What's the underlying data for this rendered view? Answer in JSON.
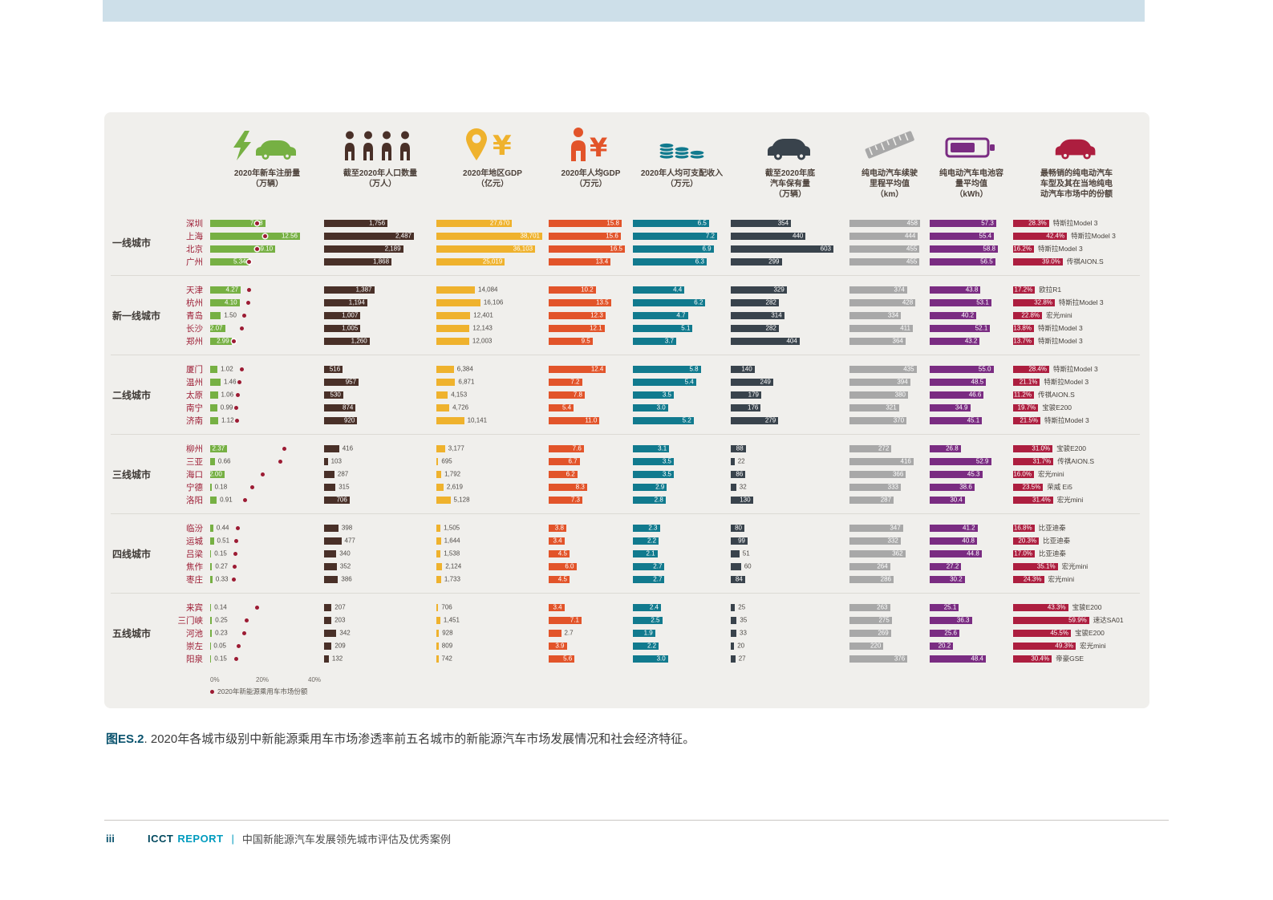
{
  "caption": {
    "label": "图ES.2",
    "text": ". 2020年各城市级别中新能源乘用车市场渗透率前五名城市的新能源汽车市场发展情况和社会经济特征。"
  },
  "footer": {
    "page": "iii",
    "org": "ICCT",
    "report": "REPORT",
    "divider": "|",
    "title": "中国新能源汽车发展领先城市评估及优秀案例"
  },
  "chart_data": {
    "type": "bar",
    "title": "2020年各城市级别中新能源乘用车市场渗透率前五名城市的新能源汽车市场发展情况和社会经济特征",
    "dot_color": "#9c1b33",
    "panel_color": "#f0efec",
    "share_axis": {
      "min": 0,
      "max": 40,
      "ticks": [
        "0%",
        "20%",
        "40%"
      ]
    },
    "legend_dot_label": "2020年新能源乘用车市场份额",
    "columns": [
      {
        "id": "reg",
        "icon": "charging-car-icon",
        "title": "2020年新车注册量\n（万辆）",
        "color": "#76b043",
        "max": 12.56,
        "format": "str"
      },
      {
        "id": "pop",
        "icon": "people-icon",
        "title": "截至2020年人口数量\n（万人）",
        "color": "#493028",
        "max": 2487,
        "format": "comma"
      },
      {
        "id": "gdp",
        "icon": "location-yuan-icon",
        "title": "2020年地区GDP\n（亿元）",
        "color": "#efb22d",
        "max": 38701,
        "format": "comma"
      },
      {
        "id": "gdp_pc",
        "icon": "person-yuan-icon",
        "title": "2020年人均GDP\n（万元）",
        "color": "#e2542a",
        "max": 16.5,
        "format": "fix1"
      },
      {
        "id": "income",
        "icon": "coins-icon",
        "title": "2020年人均可支配收入\n（万元）",
        "color": "#117a8e",
        "max": 7.2,
        "format": "fix1"
      },
      {
        "id": "cars",
        "icon": "car-icon",
        "title": "截至2020年底\n汽车保有量\n（万辆）",
        "color": "#39434c",
        "max": 603,
        "format": "int"
      },
      {
        "id": "range",
        "icon": "ruler-icon",
        "title": "纯电动汽车续驶\n里程平均值\n（km）",
        "color": "#a8a8a8",
        "max": 458,
        "format": "int"
      },
      {
        "id": "battery",
        "icon": "battery-icon",
        "title": "纯电动汽车电池容\n量平均值\n（kWh）",
        "color": "#7a2c82",
        "max": 58.8,
        "format": "fix1"
      },
      {
        "id": "top",
        "icon": "ev-car-icon",
        "title": "最畅销的纯电动汽车\n车型及其在当地纯电\n动汽车市场中的份额",
        "color": "#ad1e3f",
        "max": 60,
        "format": "pct1"
      }
    ],
    "tiers": [
      {
        "label": "一线城市",
        "cities": [
          {
            "name": "深圳",
            "reg": "7.68",
            "share": 18.0,
            "pop": 1756,
            "gdp": 27670,
            "gdp_pc": 15.8,
            "income": 6.5,
            "cars": 354,
            "range": 458,
            "battery": 57.3,
            "top_share": 28.3,
            "top_model": "特斯拉Model 3"
          },
          {
            "name": "上海",
            "reg": "12.56",
            "share": 21.0,
            "pop": 2487,
            "gdp": 38701,
            "gdp_pc": 15.6,
            "income": 7.2,
            "cars": 440,
            "range": 444,
            "battery": 55.4,
            "top_share": 42.4,
            "top_model": "特斯拉Model 3"
          },
          {
            "name": "北京",
            "reg": "9.10",
            "share": 18.0,
            "pop": 2189,
            "gdp": 36103,
            "gdp_pc": 16.5,
            "income": 6.9,
            "cars": 603,
            "range": 455,
            "battery": 58.8,
            "top_share": 16.2,
            "top_model": "特斯拉Model 3"
          },
          {
            "name": "广州",
            "reg": "5.34",
            "share": 15.0,
            "pop": 1868,
            "gdp": 25019,
            "gdp_pc": 13.4,
            "income": 6.3,
            "cars": 299,
            "range": 455,
            "battery": 56.5,
            "top_share": 39.0,
            "top_model": "传祺AION.S"
          }
        ]
      },
      {
        "label": "新一线城市",
        "cities": [
          {
            "name": "天津",
            "reg": "4.27",
            "share": 15.0,
            "pop": 1387,
            "gdp": 14084,
            "gdp_pc": 10.2,
            "income": 4.4,
            "cars": 329,
            "range": 374,
            "battery": 43.8,
            "top_share": 17.2,
            "top_model": "欧拉R1"
          },
          {
            "name": "杭州",
            "reg": "4.10",
            "share": 14.5,
            "pop": 1194,
            "gdp": 16106,
            "gdp_pc": 13.5,
            "income": 6.2,
            "cars": 282,
            "range": 428,
            "battery": 53.1,
            "top_share": 32.8,
            "top_model": "特斯拉Model 3"
          },
          {
            "name": "青岛",
            "reg": "1.50",
            "share": 13.0,
            "pop": 1007,
            "gdp": 12401,
            "gdp_pc": 12.3,
            "income": 4.7,
            "cars": 314,
            "range": 334,
            "battery": 40.2,
            "top_share": 22.8,
            "top_model": "宏光mini"
          },
          {
            "name": "长沙",
            "reg": "2.07",
            "share": 12.0,
            "pop": 1005,
            "gdp": 12143,
            "gdp_pc": 12.1,
            "income": 5.1,
            "cars": 282,
            "range": 411,
            "battery": 52.1,
            "top_share": 13.8,
            "top_model": "特斯拉Model 3"
          },
          {
            "name": "郑州",
            "reg": "2.99",
            "share": 9.0,
            "pop": 1260,
            "gdp": 12003,
            "gdp_pc": 9.5,
            "income": 3.7,
            "cars": 404,
            "range": 364,
            "battery": 43.2,
            "top_share": 13.7,
            "top_model": "特斯拉Model 3"
          }
        ]
      },
      {
        "label": "二线城市",
        "cities": [
          {
            "name": "厦门",
            "reg": "1.02",
            "share": 12.0,
            "pop": 516,
            "gdp": 6384,
            "gdp_pc": 12.4,
            "income": 5.8,
            "cars": 140,
            "range": 435,
            "battery": 55.0,
            "top_share": 28.4,
            "top_model": "特斯拉Model 3"
          },
          {
            "name": "温州",
            "reg": "1.46",
            "share": 11.2,
            "pop": 957,
            "gdp": 6871,
            "gdp_pc": 7.2,
            "income": 5.4,
            "cars": 249,
            "range": 394,
            "battery": 48.5,
            "top_share": 21.1,
            "top_model": "特斯拉Model 3"
          },
          {
            "name": "太原",
            "reg": "1.06",
            "share": 10.5,
            "pop": 530,
            "gdp": 4153,
            "gdp_pc": 7.8,
            "income": 3.5,
            "cars": 179,
            "range": 380,
            "battery": 46.6,
            "top_share": 11.2,
            "top_model": "传祺AION.S"
          },
          {
            "name": "南宁",
            "reg": "0.99",
            "share": 10.0,
            "pop": 874,
            "gdp": 4726,
            "gdp_pc": 5.4,
            "income": 3.0,
            "cars": 176,
            "range": 321,
            "battery": 34.9,
            "top_share": 19.7,
            "top_model": "宝骏E200"
          },
          {
            "name": "济南",
            "reg": "1.12",
            "share": 10.2,
            "pop": 920,
            "gdp": 10141,
            "gdp_pc": 11.0,
            "income": 5.2,
            "cars": 279,
            "range": 370,
            "battery": 45.1,
            "top_share": 21.5,
            "top_model": "特斯拉Model 3"
          }
        ]
      },
      {
        "label": "三线城市",
        "cities": [
          {
            "name": "柳州",
            "reg": "2.37",
            "share": 28.5,
            "pop": 416,
            "gdp": 3177,
            "gdp_pc": 7.6,
            "income": 3.1,
            "cars": 88,
            "range": 272,
            "battery": 26.8,
            "top_share": 31.0,
            "top_model": "宝骏E200"
          },
          {
            "name": "三亚",
            "reg": "0.66",
            "share": 27.0,
            "pop": 103,
            "gdp": 695,
            "gdp_pc": 6.7,
            "income": 3.5,
            "cars": 22,
            "range": 416,
            "battery": 52.9,
            "top_share": 31.7,
            "top_model": "传祺AION.S"
          },
          {
            "name": "海口",
            "reg": "2.00",
            "share": 20.0,
            "pop": 287,
            "gdp": 1792,
            "gdp_pc": 6.2,
            "income": 3.5,
            "cars": 86,
            "range": 366,
            "battery": 45.3,
            "top_share": 16.0,
            "top_model": "宏光mini"
          },
          {
            "name": "宁德",
            "reg": "0.18",
            "share": 16.0,
            "pop": 315,
            "gdp": 2619,
            "gdp_pc": 8.3,
            "income": 2.9,
            "cars": 32,
            "range": 333,
            "battery": 38.6,
            "top_share": 23.5,
            "top_model": "荣威 Ei5"
          },
          {
            "name": "洛阳",
            "reg": "0.91",
            "share": 13.5,
            "pop": 706,
            "gdp": 5128,
            "gdp_pc": 7.3,
            "income": 2.8,
            "cars": 130,
            "range": 287,
            "battery": 30.4,
            "top_share": 31.4,
            "top_model": "宏光mini"
          }
        ]
      },
      {
        "label": "四线城市",
        "cities": [
          {
            "name": "临汾",
            "reg": "0.44",
            "share": 10.5,
            "pop": 398,
            "gdp": 1505,
            "gdp_pc": 3.8,
            "income": 2.3,
            "cars": 80,
            "range": 347,
            "battery": 41.2,
            "top_share": 16.8,
            "top_model": "比亚迪秦"
          },
          {
            "name": "运城",
            "reg": "0.51",
            "share": 10.0,
            "pop": 477,
            "gdp": 1644,
            "gdp_pc": 3.4,
            "income": 2.2,
            "cars": 99,
            "range": 332,
            "battery": 40.8,
            "top_share": 20.3,
            "top_model": "比亚迪秦"
          },
          {
            "name": "吕梁",
            "reg": "0.15",
            "share": 9.8,
            "pop": 340,
            "gdp": 1538,
            "gdp_pc": 4.5,
            "income": 2.1,
            "cars": 51,
            "range": 362,
            "battery": 44.8,
            "top_share": 17.0,
            "top_model": "比亚迪秦"
          },
          {
            "name": "焦作",
            "reg": "0.27",
            "share": 9.5,
            "pop": 352,
            "gdp": 2124,
            "gdp_pc": 6.0,
            "income": 2.7,
            "cars": 60,
            "range": 264,
            "battery": 27.2,
            "top_share": 35.1,
            "top_model": "宏光mini"
          },
          {
            "name": "枣庄",
            "reg": "0.33",
            "share": 9.2,
            "pop": 386,
            "gdp": 1733,
            "gdp_pc": 4.5,
            "income": 2.7,
            "cars": 84,
            "range": 286,
            "battery": 30.2,
            "top_share": 24.3,
            "top_model": "宏光mini"
          }
        ]
      },
      {
        "label": "五线城市",
        "cities": [
          {
            "name": "来宾",
            "reg": "0.14",
            "share": 18.0,
            "pop": 207,
            "gdp": 706,
            "gdp_pc": 3.4,
            "income": 2.4,
            "cars": 25,
            "range": 263,
            "battery": 25.1,
            "top_share": 43.3,
            "top_model": "宝骏E200"
          },
          {
            "name": "三门峡",
            "reg": "0.25",
            "share": 14.0,
            "pop": 203,
            "gdp": 1451,
            "gdp_pc": 7.1,
            "income": 2.5,
            "cars": 35,
            "range": 275,
            "battery": 36.3,
            "top_share": 59.9,
            "top_model": "速达SA01"
          },
          {
            "name": "河池",
            "reg": "0.23",
            "share": 13.0,
            "pop": 342,
            "gdp": 928,
            "gdp_pc": 2.7,
            "income": 1.9,
            "cars": 33,
            "range": 269,
            "battery": 25.6,
            "top_share": 45.5,
            "top_model": "宝骏E200"
          },
          {
            "name": "崇左",
            "reg": "0.05",
            "share": 11.0,
            "pop": 209,
            "gdp": 809,
            "gdp_pc": 3.9,
            "income": 2.2,
            "cars": 20,
            "range": 220,
            "battery": 20.2,
            "top_share": 49.3,
            "top_model": "宏光mini"
          },
          {
            "name": "阳泉",
            "reg": "0.15",
            "share": 10.0,
            "pop": 132,
            "gdp": 742,
            "gdp_pc": 5.6,
            "income": 3.0,
            "cars": 27,
            "range": 376,
            "battery": 48.4,
            "top_share": 30.4,
            "top_model": "帝豪GSE"
          }
        ]
      }
    ]
  }
}
